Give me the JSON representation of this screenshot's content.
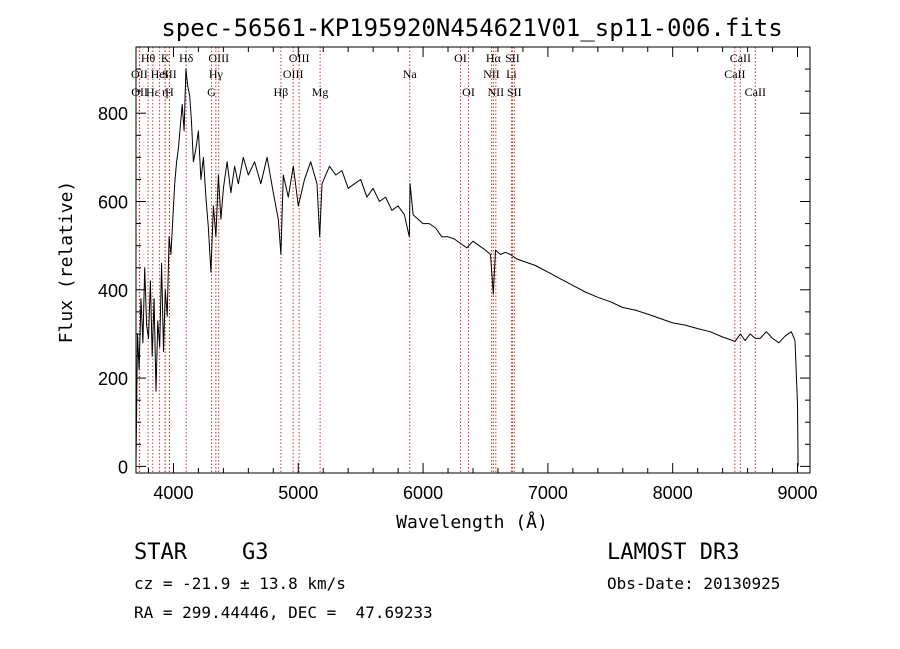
{
  "chart_data": {
    "type": "line",
    "title": "spec-56561-KP195920N454621V01_sp11-006.fits",
    "xlabel": "Wavelength (Å)",
    "ylabel": "Flux (relative)",
    "xlim": [
      3700,
      9100
    ],
    "ylim": [
      -15,
      950
    ],
    "xticks": [
      4000,
      5000,
      6000,
      7000,
      8000,
      9000
    ],
    "yticks": [
      0,
      200,
      400,
      600,
      800
    ],
    "xtick_labels": [
      "4000",
      "5000",
      "6000",
      "7000",
      "8000",
      "9000"
    ],
    "ytick_labels": [
      "0",
      "200",
      "400",
      "600",
      "800"
    ],
    "series": [
      {
        "name": "flux",
        "x": [
          3700,
          3712,
          3725,
          3740,
          3755,
          3770,
          3785,
          3800,
          3815,
          3830,
          3845,
          3860,
          3875,
          3890,
          3905,
          3920,
          3935,
          3950,
          3965,
          3980,
          3995,
          4010,
          4025,
          4040,
          4055,
          4070,
          4085,
          4100,
          4115,
          4130,
          4145,
          4160,
          4180,
          4200,
          4220,
          4240,
          4260,
          4280,
          4300,
          4320,
          4340,
          4360,
          4380,
          4400,
          4430,
          4460,
          4490,
          4520,
          4560,
          4600,
          4650,
          4700,
          4750,
          4800,
          4840,
          4861,
          4880,
          4920,
          4960,
          5000,
          5050,
          5100,
          5150,
          5172,
          5190,
          5250,
          5300,
          5350,
          5400,
          5450,
          5500,
          5550,
          5600,
          5650,
          5700,
          5750,
          5800,
          5850,
          5890,
          5896,
          5920,
          5960,
          6000,
          6050,
          6100,
          6150,
          6200,
          6250,
          6300,
          6350,
          6400,
          6450,
          6500,
          6540,
          6563,
          6580,
          6620,
          6660,
          6700,
          6750,
          6800,
          6900,
          7000,
          7100,
          7200,
          7300,
          7400,
          7500,
          7600,
          7700,
          7800,
          7900,
          8000,
          8100,
          8200,
          8300,
          8400,
          8500,
          8542,
          8580,
          8620,
          8662,
          8700,
          8750,
          8800,
          8850,
          8900,
          8950,
          8980,
          9000,
          9005
        ],
        "y": [
          0,
          300,
          220,
          380,
          280,
          450,
          320,
          290,
          420,
          250,
          380,
          170,
          330,
          270,
          460,
          260,
          400,
          340,
          520,
          480,
          560,
          640,
          690,
          720,
          770,
          820,
          760,
          900,
          860,
          840,
          780,
          690,
          720,
          760,
          650,
          700,
          610,
          540,
          440,
          590,
          520,
          660,
          560,
          630,
          690,
          620,
          680,
          640,
          700,
          660,
          690,
          640,
          700,
          620,
          560,
          480,
          660,
          610,
          680,
          590,
          650,
          690,
          640,
          520,
          640,
          680,
          660,
          670,
          630,
          640,
          650,
          610,
          630,
          600,
          610,
          580,
          590,
          570,
          520,
          640,
          570,
          560,
          550,
          550,
          540,
          520,
          520,
          515,
          505,
          495,
          510,
          500,
          490,
          480,
          390,
          490,
          480,
          485,
          480,
          470,
          465,
          455,
          440,
          425,
          410,
          395,
          383,
          373,
          360,
          354,
          345,
          335,
          325,
          320,
          312,
          305,
          293,
          283,
          300,
          285,
          300,
          290,
          290,
          305,
          290,
          280,
          295,
          305,
          285,
          140,
          0
        ]
      }
    ],
    "lines": [
      {
        "label": "OII",
        "wavelength": 3727,
        "row": 2
      },
      {
        "label": "OII",
        "wavelength": 3729,
        "row": 3
      },
      {
        "label": "Hθ",
        "wavelength": 3797,
        "row": 1
      },
      {
        "label": "Hε",
        "wavelength": 3835,
        "row": 3
      },
      {
        "label": "HeI",
        "wavelength": 3889,
        "row": 2
      },
      {
        "label": "K",
        "wavelength": 3934,
        "row": 1
      },
      {
        "label": "η",
        "wavelength": 3933,
        "row": 3
      },
      {
        "label": "SII",
        "wavelength": 3968,
        "row": 2
      },
      {
        "label": "H",
        "wavelength": 3968,
        "row": 3
      },
      {
        "label": "Hδ",
        "wavelength": 4102,
        "row": 1
      },
      {
        "label": "OIII",
        "wavelength": 4363,
        "row": 1
      },
      {
        "label": "Hγ",
        "wavelength": 4340,
        "row": 2
      },
      {
        "label": "G",
        "wavelength": 4305,
        "row": 3
      },
      {
        "label": "Hβ",
        "wavelength": 4861,
        "row": 3
      },
      {
        "label": "OIII",
        "wavelength": 4959,
        "row": 2
      },
      {
        "label": "OIII",
        "wavelength": 5007,
        "row": 1
      },
      {
        "label": "Mg",
        "wavelength": 5175,
        "row": 3
      },
      {
        "label": "Na",
        "wavelength": 5893,
        "row": 2
      },
      {
        "label": "OI",
        "wavelength": 6300,
        "row": 1
      },
      {
        "label": "OI",
        "wavelength": 6364,
        "row": 3
      },
      {
        "label": "NII",
        "wavelength": 6548,
        "row": 2
      },
      {
        "label": "Hα",
        "wavelength": 6563,
        "row": 1
      },
      {
        "label": "NII",
        "wavelength": 6583,
        "row": 3
      },
      {
        "label": "SII",
        "wavelength": 6716,
        "row": 1
      },
      {
        "label": "Li",
        "wavelength": 6708,
        "row": 2
      },
      {
        "label": "SII",
        "wavelength": 6731,
        "row": 3
      },
      {
        "label": "CaII",
        "wavelength": 8498,
        "row": 2
      },
      {
        "label": "CaII",
        "wavelength": 8542,
        "row": 1
      },
      {
        "label": "CaII",
        "wavelength": 8662,
        "row": 3
      }
    ]
  },
  "info": {
    "object_type": "STAR",
    "subclass": "G3",
    "survey": "LAMOST DR3",
    "cz": "cz = -21.9 ± 13.8 km/s",
    "obs_date": "Obs-Date: 20130925",
    "coords": "RA = 299.44446, DEC =  47.69233"
  },
  "colors": {
    "line": "#000000",
    "marker": "#c0392b",
    "background": "#ffffff"
  }
}
